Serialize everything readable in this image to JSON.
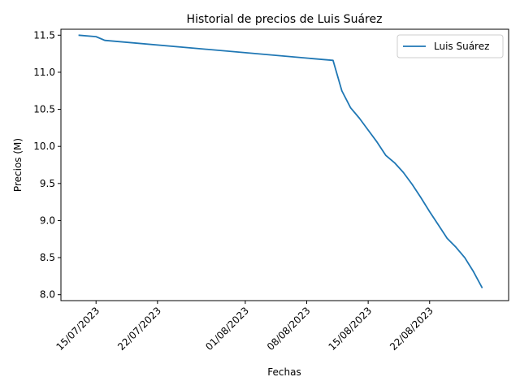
{
  "chart_data": {
    "type": "line",
    "title": "Historial de precios de Luis Suárez",
    "xlabel": "Fechas",
    "ylabel": "Precios (M)",
    "x_ticks": [
      "15/07/2023",
      "22/07/2023",
      "01/08/2023",
      "08/08/2023",
      "15/08/2023",
      "22/08/2023"
    ],
    "y_ticks": [
      "8.0",
      "8.5",
      "9.0",
      "9.5",
      "10.0",
      "10.5",
      "11.0",
      "11.5"
    ],
    "xlim": [
      "2023-07-11",
      "2023-08-31"
    ],
    "ylim": [
      7.92,
      11.58
    ],
    "grid": false,
    "legend_position": "top-right",
    "series": [
      {
        "name": "Luis Suárez",
        "color": "#1f77b4",
        "points": [
          [
            "2023-07-13",
            11.5
          ],
          [
            "2023-07-15",
            11.48
          ],
          [
            "2023-07-16",
            11.43
          ],
          [
            "2023-08-11",
            11.16
          ],
          [
            "2023-08-12",
            10.75
          ],
          [
            "2023-08-13",
            10.52
          ],
          [
            "2023-08-14",
            10.38
          ],
          [
            "2023-08-15",
            10.22
          ],
          [
            "2023-08-16",
            10.06
          ],
          [
            "2023-08-17",
            9.88
          ],
          [
            "2023-08-18",
            9.78
          ],
          [
            "2023-08-19",
            9.65
          ],
          [
            "2023-08-20",
            9.49
          ],
          [
            "2023-08-21",
            9.31
          ],
          [
            "2023-08-22",
            9.12
          ],
          [
            "2023-08-23",
            8.94
          ],
          [
            "2023-08-24",
            8.76
          ],
          [
            "2023-08-25",
            8.64
          ],
          [
            "2023-08-26",
            8.5
          ],
          [
            "2023-08-27",
            8.31
          ],
          [
            "2023-08-28",
            8.09
          ]
        ]
      }
    ]
  }
}
